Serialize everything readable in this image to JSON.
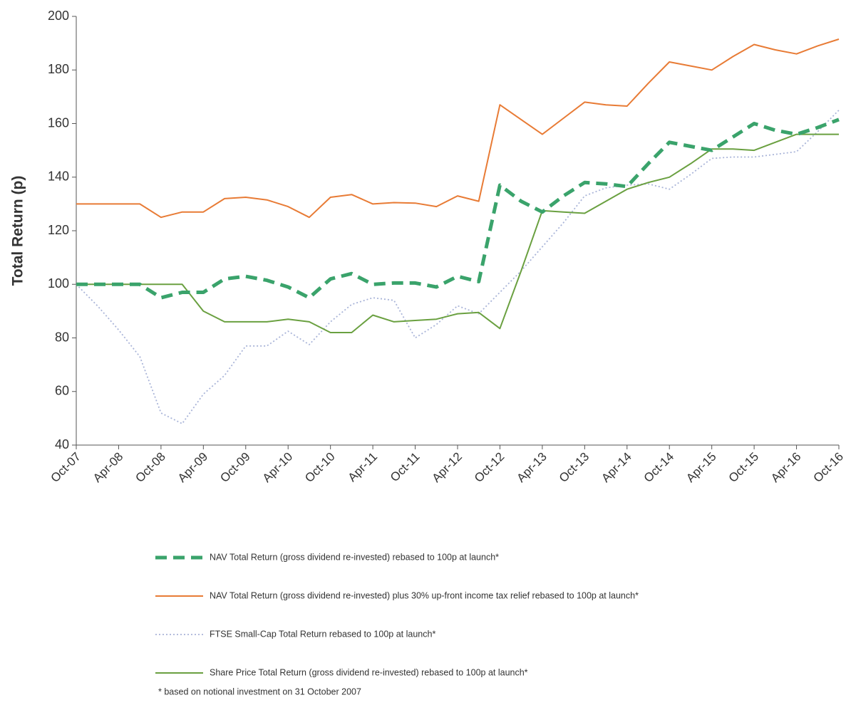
{
  "chart_data": {
    "type": "line",
    "ylabel": "Total Return (p)",
    "categories": [
      "Oct-07",
      null,
      "Apr-08",
      null,
      "Oct-08",
      null,
      "Apr-09",
      null,
      "Oct-09",
      null,
      "Apr-10",
      null,
      "Oct-10",
      null,
      "Apr-11",
      null,
      "Oct-11",
      null,
      "Apr-12",
      null,
      "Oct-12",
      null,
      "Apr-13",
      null,
      "Oct-13",
      null,
      "Apr-14",
      null,
      "Oct-14",
      null,
      "Apr-15",
      null,
      "Oct-15",
      null,
      "Apr-16",
      null,
      "Oct-16"
    ],
    "series": [
      {
        "name": "NAV Total Return (gross dividend re-invested) rebased to 100p at launch*",
        "color": "#3aa36b",
        "style": "dashed",
        "values": [
          100,
          100,
          100,
          100,
          95,
          97,
          97,
          102,
          103,
          101.5,
          99,
          95,
          102,
          104,
          100,
          100.5,
          100.5,
          99,
          103,
          101,
          137,
          131,
          127,
          133,
          138,
          137.5,
          136.5,
          145,
          153,
          151.5,
          150,
          155,
          160,
          157.5,
          156,
          158.5,
          161.5
        ]
      },
      {
        "name": "NAV Total Return (gross dividend re-invested) plus 30% up-front income tax relief rebased to 100p at launch*",
        "color": "#e87b35",
        "style": "solid",
        "values": [
          130,
          130,
          130,
          130,
          125,
          127,
          127,
          132,
          132.5,
          131.5,
          129,
          125,
          132.5,
          133.5,
          130,
          130.5,
          130.3,
          129,
          133,
          131,
          167,
          161.5,
          156,
          162,
          168,
          167,
          166.5,
          175,
          183,
          181.5,
          180,
          185,
          189.5,
          187.5,
          186,
          189,
          191.5
        ]
      },
      {
        "name": "FTSE Small-Cap Total Return rebased to 100p at launch*",
        "color": "#a9b4d8",
        "style": "dotted",
        "values": [
          100,
          92,
          83,
          73,
          52,
          48,
          59,
          66,
          77,
          77,
          82.5,
          77.5,
          86,
          92.5,
          95,
          94,
          80,
          85,
          92,
          89,
          97,
          105,
          114,
          123,
          133,
          136,
          137,
          137.5,
          135.5,
          141,
          147,
          147.5,
          147.5,
          148.5,
          149.5,
          157,
          165
        ]
      },
      {
        "name": "Share Price Total Return (gross dividend re-invested) rebased to 100p at launch*",
        "color": "#6aa040",
        "style": "solid",
        "values": [
          100,
          100,
          100,
          100,
          100,
          100,
          90,
          86,
          86,
          86,
          87,
          86,
          82,
          82,
          88.5,
          86,
          86.5,
          87,
          89,
          89.5,
          83.5,
          105,
          127.5,
          127,
          126.5,
          131,
          135.5,
          138,
          140,
          145,
          150.5,
          150.5,
          150,
          153,
          156,
          156,
          156
        ]
      }
    ],
    "ylim": [
      40,
      200
    ],
    "yticks": [
      40,
      60,
      80,
      100,
      120,
      140,
      160,
      180,
      200
    ],
    "grid": false,
    "footnote": "* based on notional investment on 31 October 2007"
  }
}
